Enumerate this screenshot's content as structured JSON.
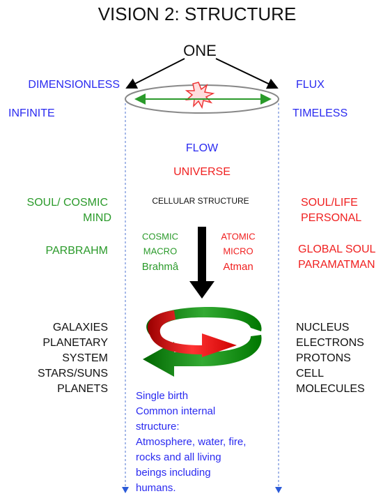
{
  "title": "VISION 2: STRUCTURE",
  "one": "ONE",
  "left_top": [
    "DIMENSIONLESS",
    "INFINITE"
  ],
  "right_top": [
    "FLUX",
    "TIMELESS"
  ],
  "center": {
    "flow": "FLOW",
    "universe": "UNIVERSE",
    "cellular": "CELLULAR STRUCTURE"
  },
  "left_soul": [
    "SOUL/ COSMIC",
    "MIND"
  ],
  "right_soul": [
    "SOUL/LIFE",
    "PERSONAL"
  ],
  "left_global": "PARBRAHM",
  "right_global": [
    "GLOBAL SOUL",
    "PARAMATMAN"
  ],
  "cosmic": [
    "COSMIC",
    "MACRO",
    "Brahmâ"
  ],
  "atomic": [
    "ATOMIC",
    "MICRO",
    "Atman"
  ],
  "left_list": [
    "GALAXIES",
    "PLANETARY",
    "SYSTEM",
    "STARS/SUNS",
    "PLANETS"
  ],
  "right_list": [
    "NUCLEUS",
    "ELECTRONS",
    "PROTONS",
    "CELL",
    "MOLECULES"
  ],
  "note": [
    "Single birth",
    "Common internal",
    "structure:",
    "Atmosphere, water, fire,",
    "rocks and all living",
    "beings including",
    "humans."
  ]
}
